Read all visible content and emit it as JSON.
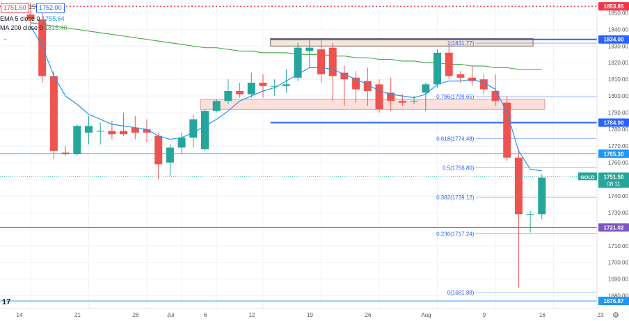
{
  "toolbar": {
    "bid": "1751.50",
    "spread": "15",
    "ask": "1752.00"
  },
  "legend": {
    "ema_label": "EMA 5 close 0",
    "ema_value": "1755.64",
    "ma_label": "MA 200 close 0",
    "ma_value": "1815.40"
  },
  "price_tag": {
    "symbol": "GOLD",
    "price": "1751.50",
    "countdown": "08:11"
  },
  "colors": {
    "up": "#26a69a",
    "down": "#ef5350",
    "ema": "#2196f3",
    "ma": "#4caf50",
    "hline": "#2962ff",
    "purple": "#7e57c2",
    "top_dotted": "#f23645"
  },
  "chart_data": {
    "type": "candlestick",
    "ylim": [
      1674,
      1856
    ],
    "y_ticks": [
      1850,
      1840,
      1830,
      1820,
      1810,
      1800,
      1790,
      1780,
      1770,
      1760,
      1750,
      1740,
      1730,
      1720,
      1710,
      1700,
      1690,
      1680
    ],
    "x_ticks": [
      {
        "label": "14",
        "i": 0
      },
      {
        "label": "21",
        "i": 5
      },
      {
        "label": "28",
        "i": 10
      },
      {
        "label": "Jul",
        "i": 13
      },
      {
        "label": "6",
        "i": 16
      },
      {
        "label": "12",
        "i": 20
      },
      {
        "label": "19",
        "i": 25
      },
      {
        "label": "26",
        "i": 30
      },
      {
        "label": "Aug",
        "i": 35
      },
      {
        "label": "9",
        "i": 40
      },
      {
        "label": "16",
        "i": 45
      },
      {
        "label": "23",
        "i": 50
      }
    ],
    "candles": [
      {
        "o": 1849,
        "h": 1856,
        "c": 1846,
        "l": 1840
      },
      {
        "o": 1846,
        "h": 1850,
        "c": 1812,
        "l": 1808
      },
      {
        "o": 1812,
        "h": 1815,
        "c": 1767,
        "l": 1762
      },
      {
        "o": 1766,
        "h": 1770,
        "c": 1765,
        "l": 1764
      },
      {
        "o": 1765,
        "h": 1783,
        "c": 1782,
        "l": 1764
      },
      {
        "o": 1778,
        "h": 1788,
        "c": 1782,
        "l": 1771
      },
      {
        "o": 1779,
        "h": 1784,
        "c": 1779,
        "l": 1771
      },
      {
        "o": 1779,
        "h": 1785,
        "c": 1777,
        "l": 1774
      },
      {
        "o": 1779,
        "h": 1790,
        "c": 1777,
        "l": 1776
      },
      {
        "o": 1781,
        "h": 1788,
        "c": 1778,
        "l": 1774
      },
      {
        "o": 1780,
        "h": 1786,
        "c": 1778,
        "l": 1772
      },
      {
        "o": 1776,
        "h": 1778,
        "c": 1759,
        "l": 1750
      },
      {
        "o": 1760,
        "h": 1771,
        "c": 1769,
        "l": 1752
      },
      {
        "o": 1769,
        "h": 1778,
        "c": 1775,
        "l": 1765
      },
      {
        "o": 1775,
        "h": 1789,
        "c": 1786,
        "l": 1769
      },
      {
        "o": 1768,
        "h": 1792,
        "c": 1791,
        "l": 1767
      },
      {
        "o": 1791,
        "h": 1798,
        "c": 1797,
        "l": 1790
      },
      {
        "o": 1797,
        "h": 1810,
        "c": 1803,
        "l": 1795
      },
      {
        "o": 1803,
        "h": 1808,
        "c": 1801,
        "l": 1799
      },
      {
        "o": 1801,
        "h": 1814,
        "c": 1808,
        "l": 1799
      },
      {
        "o": 1808,
        "h": 1813,
        "c": 1806,
        "l": 1799
      },
      {
        "o": 1806,
        "h": 1810,
        "c": 1806,
        "l": 1800
      },
      {
        "o": 1806,
        "h": 1816,
        "c": 1807,
        "l": 1802
      },
      {
        "o": 1811,
        "h": 1832,
        "c": 1829,
        "l": 1809
      },
      {
        "o": 1827,
        "h": 1834,
        "c": 1829,
        "l": 1817
      },
      {
        "o": 1828,
        "h": 1834,
        "c": 1813,
        "l": 1808
      },
      {
        "o": 1829,
        "h": 1832,
        "c": 1812,
        "l": 1797
      },
      {
        "o": 1814,
        "h": 1818,
        "c": 1810,
        "l": 1794
      },
      {
        "o": 1811,
        "h": 1815,
        "c": 1804,
        "l": 1796
      },
      {
        "o": 1809,
        "h": 1817,
        "c": 1803,
        "l": 1794
      },
      {
        "o": 1807,
        "h": 1810,
        "c": 1792,
        "l": 1790
      },
      {
        "o": 1802,
        "h": 1811,
        "c": 1797,
        "l": 1791
      },
      {
        "o": 1797,
        "h": 1801,
        "c": 1796,
        "l": 1794
      },
      {
        "o": 1797,
        "h": 1800,
        "c": 1797,
        "l": 1795
      },
      {
        "o": 1802,
        "h": 1808,
        "c": 1807,
        "l": 1791
      },
      {
        "o": 1807,
        "h": 1828,
        "c": 1826,
        "l": 1805
      },
      {
        "o": 1826,
        "h": 1831,
        "c": 1812,
        "l": 1810
      },
      {
        "o": 1813,
        "h": 1815,
        "c": 1811,
        "l": 1808
      },
      {
        "o": 1811,
        "h": 1818,
        "c": 1809,
        "l": 1806
      },
      {
        "o": 1810,
        "h": 1813,
        "c": 1804,
        "l": 1801
      },
      {
        "o": 1803,
        "h": 1813,
        "c": 1797,
        "l": 1794
      },
      {
        "o": 1796,
        "h": 1800,
        "c": 1763,
        "l": 1761
      },
      {
        "o": 1763,
        "h": 1768,
        "c": 1729,
        "l": 1685
      },
      {
        "o": 1729,
        "h": 1731,
        "c": 1729,
        "l": 1718
      },
      {
        "o": 1729,
        "h": 1753,
        "c": 1751,
        "l": 1726
      }
    ],
    "ema5": [
      1842,
      1830,
      1812,
      1800,
      1795,
      1789,
      1786,
      1783,
      1782,
      1781,
      1780,
      1776,
      1774,
      1775,
      1778,
      1782,
      1786,
      1791,
      1797,
      1800,
      1803,
      1805,
      1809,
      1813,
      1817,
      1817,
      1816,
      1813,
      1810,
      1807,
      1803,
      1801,
      1800,
      1799,
      1801,
      1807,
      1809,
      1809,
      1810,
      1808,
      1804,
      1790,
      1767,
      1756,
      1755
    ],
    "ma200": [
      1844,
      1843,
      1842,
      1841,
      1840,
      1839,
      1838,
      1837,
      1836,
      1835,
      1834,
      1833,
      1832,
      1831,
      1830,
      1829,
      1829,
      1828,
      1827,
      1827,
      1826,
      1826,
      1826,
      1825,
      1825,
      1825,
      1824,
      1824,
      1823,
      1823,
      1822,
      1822,
      1821,
      1821,
      1820,
      1820,
      1819,
      1819,
      1818,
      1818,
      1817,
      1817,
      1816,
      1816,
      1816
    ],
    "horizontal_levels": [
      {
        "price": 1853.85,
        "label": "1853.85",
        "style": "dotted",
        "color": "#f23645"
      },
      {
        "price": 1834.0,
        "label": "1834.00",
        "style": "solid",
        "color": "#2962ff",
        "x_start_i": 21
      },
      {
        "price": 1784.0,
        "label": "1784.00",
        "style": "solid",
        "color": "#2962ff",
        "x_start_i": 21
      },
      {
        "price": 1765.3,
        "label": "1765.30",
        "style": "solid",
        "color": "#2196f3",
        "x_start_i": 0
      },
      {
        "price": 1721.02,
        "label": "1721.02",
        "style": "solid",
        "color": "#7e57c2",
        "x_start_i": 0
      },
      {
        "price": 1676.87,
        "label": "1676.87",
        "style": "solid",
        "color": "#2196f3",
        "x_start_i": 0
      }
    ],
    "fib_levels": [
      {
        "ratio": "1",
        "price": 1831.77,
        "label": "1(1831.77)"
      },
      {
        "ratio": "0.786",
        "price": 1799.65,
        "label": "0.786(1799.65)"
      },
      {
        "ratio": "0.618",
        "price": 1774.48,
        "label": "0.618(1774.48)"
      },
      {
        "ratio": "0.5",
        "price": 1756.8,
        "label": "0.5(1756.80)"
      },
      {
        "ratio": "0.382",
        "price": 1739.12,
        "label": "0.382(1739.12)"
      },
      {
        "ratio": "0.236",
        "price": 1717.24,
        "label": "0.236(1717.24)"
      },
      {
        "ratio": "0",
        "price": 1681.88,
        "label": "0(1681.88)"
      }
    ],
    "zones": [
      {
        "top": 1834.5,
        "bottom": 1830,
        "from_i": 21,
        "to_i": 43,
        "fill": "#f5e6d6",
        "stroke": "#7a6a60"
      },
      {
        "top": 1798,
        "bottom": 1792,
        "from_i": 15,
        "to_i": 44,
        "fill": "#fbe0dc",
        "stroke": "#e0a09a"
      }
    ]
  }
}
